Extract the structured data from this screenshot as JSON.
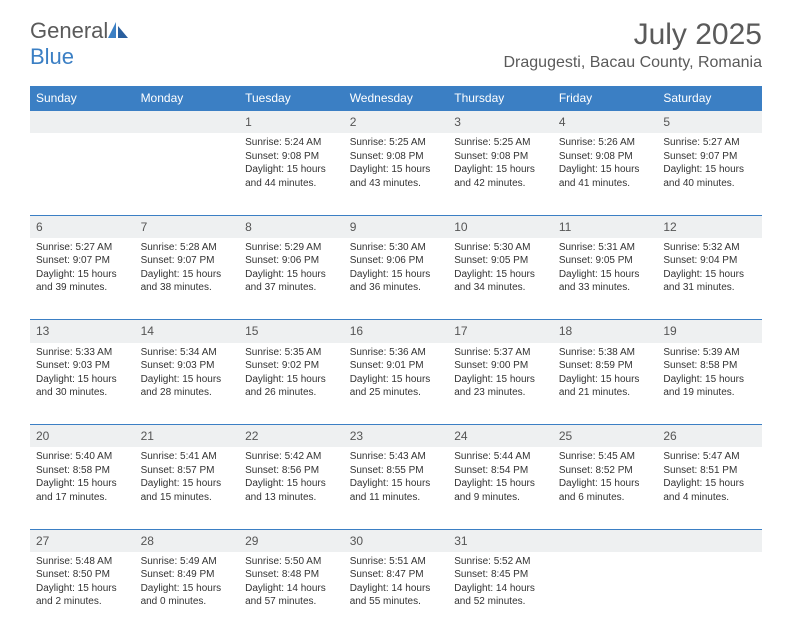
{
  "logo": {
    "word1": "General",
    "word2": "Blue"
  },
  "title": "July 2025",
  "location": "Dragugesti, Bacau County, Romania",
  "colors": {
    "header_bg": "#3b7fc4",
    "header_text": "#ffffff",
    "daynum_bg": "#eef0f1",
    "week_divider": "#3b7fc4",
    "body_text": "#333333",
    "page_bg": "#ffffff",
    "logo_gray": "#5a5a5a",
    "logo_blue": "#3b7fc4"
  },
  "dayHeaders": [
    "Sunday",
    "Monday",
    "Tuesday",
    "Wednesday",
    "Thursday",
    "Friday",
    "Saturday"
  ],
  "weeks": [
    [
      null,
      null,
      {
        "n": "1",
        "sr": "5:24 AM",
        "ss": "9:08 PM",
        "dl": "15 hours and 44 minutes."
      },
      {
        "n": "2",
        "sr": "5:25 AM",
        "ss": "9:08 PM",
        "dl": "15 hours and 43 minutes."
      },
      {
        "n": "3",
        "sr": "5:25 AM",
        "ss": "9:08 PM",
        "dl": "15 hours and 42 minutes."
      },
      {
        "n": "4",
        "sr": "5:26 AM",
        "ss": "9:08 PM",
        "dl": "15 hours and 41 minutes."
      },
      {
        "n": "5",
        "sr": "5:27 AM",
        "ss": "9:07 PM",
        "dl": "15 hours and 40 minutes."
      }
    ],
    [
      {
        "n": "6",
        "sr": "5:27 AM",
        "ss": "9:07 PM",
        "dl": "15 hours and 39 minutes."
      },
      {
        "n": "7",
        "sr": "5:28 AM",
        "ss": "9:07 PM",
        "dl": "15 hours and 38 minutes."
      },
      {
        "n": "8",
        "sr": "5:29 AM",
        "ss": "9:06 PM",
        "dl": "15 hours and 37 minutes."
      },
      {
        "n": "9",
        "sr": "5:30 AM",
        "ss": "9:06 PM",
        "dl": "15 hours and 36 minutes."
      },
      {
        "n": "10",
        "sr": "5:30 AM",
        "ss": "9:05 PM",
        "dl": "15 hours and 34 minutes."
      },
      {
        "n": "11",
        "sr": "5:31 AM",
        "ss": "9:05 PM",
        "dl": "15 hours and 33 minutes."
      },
      {
        "n": "12",
        "sr": "5:32 AM",
        "ss": "9:04 PM",
        "dl": "15 hours and 31 minutes."
      }
    ],
    [
      {
        "n": "13",
        "sr": "5:33 AM",
        "ss": "9:03 PM",
        "dl": "15 hours and 30 minutes."
      },
      {
        "n": "14",
        "sr": "5:34 AM",
        "ss": "9:03 PM",
        "dl": "15 hours and 28 minutes."
      },
      {
        "n": "15",
        "sr": "5:35 AM",
        "ss": "9:02 PM",
        "dl": "15 hours and 26 minutes."
      },
      {
        "n": "16",
        "sr": "5:36 AM",
        "ss": "9:01 PM",
        "dl": "15 hours and 25 minutes."
      },
      {
        "n": "17",
        "sr": "5:37 AM",
        "ss": "9:00 PM",
        "dl": "15 hours and 23 minutes."
      },
      {
        "n": "18",
        "sr": "5:38 AM",
        "ss": "8:59 PM",
        "dl": "15 hours and 21 minutes."
      },
      {
        "n": "19",
        "sr": "5:39 AM",
        "ss": "8:58 PM",
        "dl": "15 hours and 19 minutes."
      }
    ],
    [
      {
        "n": "20",
        "sr": "5:40 AM",
        "ss": "8:58 PM",
        "dl": "15 hours and 17 minutes."
      },
      {
        "n": "21",
        "sr": "5:41 AM",
        "ss": "8:57 PM",
        "dl": "15 hours and 15 minutes."
      },
      {
        "n": "22",
        "sr": "5:42 AM",
        "ss": "8:56 PM",
        "dl": "15 hours and 13 minutes."
      },
      {
        "n": "23",
        "sr": "5:43 AM",
        "ss": "8:55 PM",
        "dl": "15 hours and 11 minutes."
      },
      {
        "n": "24",
        "sr": "5:44 AM",
        "ss": "8:54 PM",
        "dl": "15 hours and 9 minutes."
      },
      {
        "n": "25",
        "sr": "5:45 AM",
        "ss": "8:52 PM",
        "dl": "15 hours and 6 minutes."
      },
      {
        "n": "26",
        "sr": "5:47 AM",
        "ss": "8:51 PM",
        "dl": "15 hours and 4 minutes."
      }
    ],
    [
      {
        "n": "27",
        "sr": "5:48 AM",
        "ss": "8:50 PM",
        "dl": "15 hours and 2 minutes."
      },
      {
        "n": "28",
        "sr": "5:49 AM",
        "ss": "8:49 PM",
        "dl": "15 hours and 0 minutes."
      },
      {
        "n": "29",
        "sr": "5:50 AM",
        "ss": "8:48 PM",
        "dl": "14 hours and 57 minutes."
      },
      {
        "n": "30",
        "sr": "5:51 AM",
        "ss": "8:47 PM",
        "dl": "14 hours and 55 minutes."
      },
      {
        "n": "31",
        "sr": "5:52 AM",
        "ss": "8:45 PM",
        "dl": "14 hours and 52 minutes."
      },
      null,
      null
    ]
  ],
  "labels": {
    "sunrise": "Sunrise:",
    "sunset": "Sunset:",
    "daylight": "Daylight:"
  }
}
